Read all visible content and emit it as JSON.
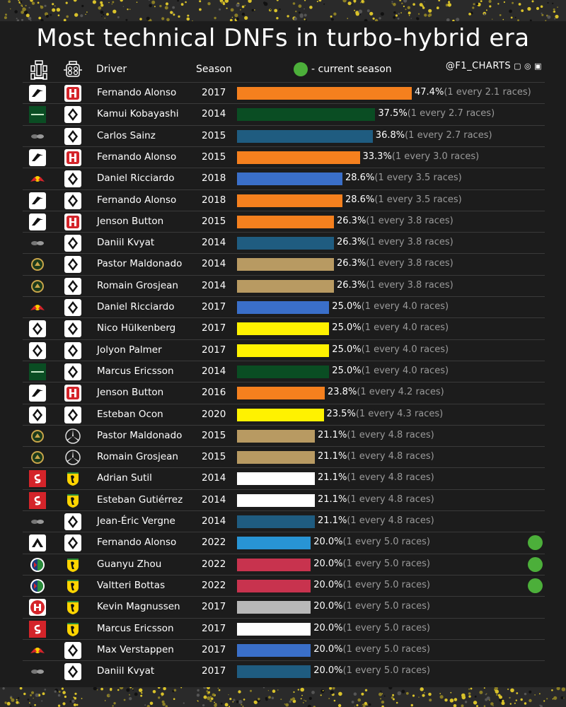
{
  "title": "Most technical DNFs in turbo-hybrid era",
  "header": {
    "team_icon": "car-chassis-icon",
    "engine_icon": "engine-icon",
    "driver_label": "Driver",
    "season_label": "Season",
    "legend_text": "- current season",
    "social_handle": "@F1_CHARTS",
    "social_icons": "▢ ◎ ▣"
  },
  "colors": {
    "mclaren": "#f5801e",
    "caterham": "#0a4d23",
    "toro_rosso": "#1f5c80",
    "red_bull": "#3a6fc9",
    "lotus": "#b89a62",
    "renault": "#fff200",
    "sauber": "#ffffff",
    "alpine": "#2894d4",
    "alfa_romeo": "#c8334e",
    "haas": "#b8b8b8",
    "current_marker": "#4caf3a"
  },
  "chart_data": {
    "type": "bar",
    "title": "Most technical DNFs in turbo-hybrid era",
    "xlabel": "",
    "ylabel": "",
    "xlim": [
      0,
      47.4
    ],
    "orientation": "horizontal",
    "rows": [
      {
        "team": "mclaren",
        "engine": "honda",
        "driver": "Fernando Alonso",
        "season": "2017",
        "value": 47.4,
        "value_label": "47.4%",
        "every_label": "(1 every 2.1 races)",
        "color": "#f5801e",
        "current": false
      },
      {
        "team": "caterham",
        "engine": "renault",
        "driver": "Kamui Kobayashi",
        "season": "2014",
        "value": 37.5,
        "value_label": "37.5%",
        "every_label": "(1 every 2.7 races)",
        "color": "#0a4d23",
        "current": false
      },
      {
        "team": "toro_rosso",
        "engine": "renault",
        "driver": "Carlos Sainz",
        "season": "2015",
        "value": 36.8,
        "value_label": "36.8%",
        "every_label": "(1 every 2.7 races)",
        "color": "#1f5c80",
        "current": false
      },
      {
        "team": "mclaren",
        "engine": "honda",
        "driver": "Fernando Alonso",
        "season": "2015",
        "value": 33.3,
        "value_label": "33.3%",
        "every_label": "(1 every 3.0 races)",
        "color": "#f5801e",
        "current": false
      },
      {
        "team": "red_bull",
        "engine": "renault",
        "driver": "Daniel Ricciardo",
        "season": "2018",
        "value": 28.6,
        "value_label": "28.6%",
        "every_label": "(1 every 3.5 races)",
        "color": "#3a6fc9",
        "current": false
      },
      {
        "team": "mclaren",
        "engine": "renault",
        "driver": "Fernando Alonso",
        "season": "2018",
        "value": 28.6,
        "value_label": "28.6%",
        "every_label": "(1 every 3.5 races)",
        "color": "#f5801e",
        "current": false
      },
      {
        "team": "mclaren",
        "engine": "honda",
        "driver": "Jenson Button",
        "season": "2015",
        "value": 26.3,
        "value_label": "26.3%",
        "every_label": "(1 every 3.8 races)",
        "color": "#f5801e",
        "current": false
      },
      {
        "team": "toro_rosso",
        "engine": "renault",
        "driver": "Daniil Kvyat",
        "season": "2014",
        "value": 26.3,
        "value_label": "26.3%",
        "every_label": "(1 every 3.8 races)",
        "color": "#1f5c80",
        "current": false
      },
      {
        "team": "lotus",
        "engine": "renault",
        "driver": "Pastor Maldonado",
        "season": "2014",
        "value": 26.3,
        "value_label": "26.3%",
        "every_label": "(1 every 3.8 races)",
        "color": "#b89a62",
        "current": false
      },
      {
        "team": "lotus",
        "engine": "renault",
        "driver": "Romain Grosjean",
        "season": "2014",
        "value": 26.3,
        "value_label": "26.3%",
        "every_label": "(1 every 3.8 races)",
        "color": "#b89a62",
        "current": false
      },
      {
        "team": "red_bull",
        "engine": "renault",
        "driver": "Daniel Ricciardo",
        "season": "2017",
        "value": 25.0,
        "value_label": "25.0%",
        "every_label": "(1 every 4.0 races)",
        "color": "#3a6fc9",
        "current": false
      },
      {
        "team": "renault",
        "engine": "renault",
        "driver": "Nico Hülkenberg",
        "season": "2017",
        "value": 25.0,
        "value_label": "25.0%",
        "every_label": "(1 every 4.0 races)",
        "color": "#fff200",
        "current": false
      },
      {
        "team": "renault",
        "engine": "renault",
        "driver": "Jolyon Palmer",
        "season": "2017",
        "value": 25.0,
        "value_label": "25.0%",
        "every_label": "(1 every 4.0 races)",
        "color": "#fff200",
        "current": false
      },
      {
        "team": "caterham",
        "engine": "renault",
        "driver": "Marcus Ericsson",
        "season": "2014",
        "value": 25.0,
        "value_label": "25.0%",
        "every_label": "(1 every 4.0 races)",
        "color": "#0a4d23",
        "current": false
      },
      {
        "team": "mclaren",
        "engine": "honda",
        "driver": "Jenson Button",
        "season": "2016",
        "value": 23.8,
        "value_label": "23.8%",
        "every_label": "(1 every 4.2 races)",
        "color": "#f5801e",
        "current": false
      },
      {
        "team": "renault",
        "engine": "renault",
        "driver": "Esteban Ocon",
        "season": "2020",
        "value": 23.5,
        "value_label": "23.5%",
        "every_label": "(1 every 4.3 races)",
        "color": "#fff200",
        "current": false
      },
      {
        "team": "lotus",
        "engine": "mercedes",
        "driver": "Pastor Maldonado",
        "season": "2015",
        "value": 21.1,
        "value_label": "21.1%",
        "every_label": "(1 every 4.8 races)",
        "color": "#b89a62",
        "current": false
      },
      {
        "team": "lotus",
        "engine": "mercedes",
        "driver": "Romain Grosjean",
        "season": "2015",
        "value": 21.1,
        "value_label": "21.1%",
        "every_label": "(1 every 4.8 races)",
        "color": "#b89a62",
        "current": false
      },
      {
        "team": "sauber",
        "engine": "ferrari",
        "driver": "Adrian Sutil",
        "season": "2014",
        "value": 21.1,
        "value_label": "21.1%",
        "every_label": "(1 every 4.8 races)",
        "color": "#ffffff",
        "current": false
      },
      {
        "team": "sauber",
        "engine": "ferrari",
        "driver": "Esteban Gutiérrez",
        "season": "2014",
        "value": 21.1,
        "value_label": "21.1%",
        "every_label": "(1 every 4.8 races)",
        "color": "#ffffff",
        "current": false
      },
      {
        "team": "toro_rosso",
        "engine": "renault",
        "driver": "Jean-Éric Vergne",
        "season": "2014",
        "value": 21.1,
        "value_label": "21.1%",
        "every_label": "(1 every 4.8 races)",
        "color": "#1f5c80",
        "current": false
      },
      {
        "team": "alpine",
        "engine": "renault",
        "driver": "Fernando Alonso",
        "season": "2022",
        "value": 20.0,
        "value_label": "20.0%",
        "every_label": "(1 every 5.0 races)",
        "color": "#2894d4",
        "current": true
      },
      {
        "team": "alfa_romeo",
        "engine": "ferrari",
        "driver": "Guanyu Zhou",
        "season": "2022",
        "value": 20.0,
        "value_label": "20.0%",
        "every_label": "(1 every 5.0 races)",
        "color": "#c8334e",
        "current": true
      },
      {
        "team": "alfa_romeo",
        "engine": "ferrari",
        "driver": "Valtteri Bottas",
        "season": "2022",
        "value": 20.0,
        "value_label": "20.0%",
        "every_label": "(1 every 5.0 races)",
        "color": "#c8334e",
        "current": true
      },
      {
        "team": "haas",
        "engine": "ferrari",
        "driver": "Kevin Magnussen",
        "season": "2017",
        "value": 20.0,
        "value_label": "20.0%",
        "every_label": "(1 every 5.0 races)",
        "color": "#b8b8b8",
        "current": false
      },
      {
        "team": "sauber",
        "engine": "ferrari",
        "driver": "Marcus Ericsson",
        "season": "2017",
        "value": 20.0,
        "value_label": "20.0%",
        "every_label": "(1 every 5.0 races)",
        "color": "#ffffff",
        "current": false
      },
      {
        "team": "red_bull",
        "engine": "renault",
        "driver": "Max Verstappen",
        "season": "2017",
        "value": 20.0,
        "value_label": "20.0%",
        "every_label": "(1 every 5.0 races)",
        "color": "#3a6fc9",
        "current": false
      },
      {
        "team": "toro_rosso",
        "engine": "renault",
        "driver": "Daniil Kvyat",
        "season": "2017",
        "value": 20.0,
        "value_label": "20.0%",
        "every_label": "(1 every 5.0 races)",
        "color": "#1f5c80",
        "current": false
      }
    ]
  }
}
